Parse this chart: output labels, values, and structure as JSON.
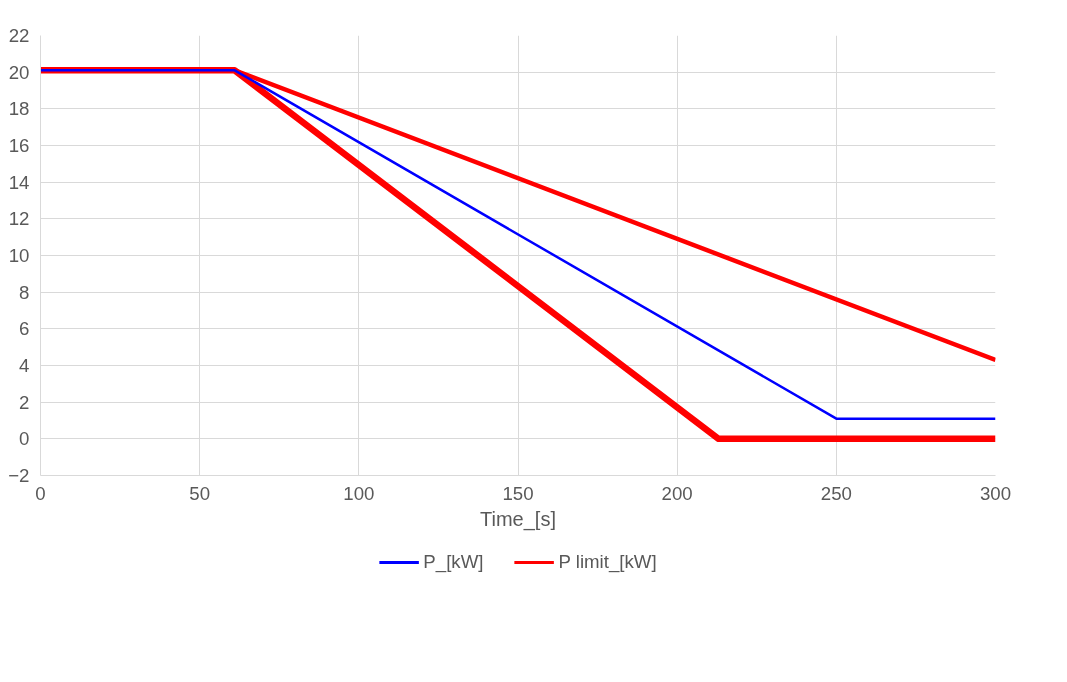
{
  "chart_data": {
    "type": "line",
    "xlabel": "Time_[s]",
    "xlim": [
      0,
      300
    ],
    "xticks": [
      0,
      50,
      100,
      150,
      200,
      250,
      300
    ],
    "ylim": [
      -2,
      22
    ],
    "yticks": [
      -2,
      0,
      2,
      4,
      6,
      8,
      10,
      12,
      14,
      16,
      18,
      20,
      22
    ],
    "grid": true,
    "legend": "bottom",
    "marker": "none",
    "line_style": "solid",
    "series": [
      {
        "name": "P_[kW]",
        "color": "#0000ff",
        "x": [
          0,
          61,
          250,
          300
        ],
        "values": [
          20.1,
          20.1,
          1.1,
          1.1
        ]
      },
      {
        "name": "P limit_[kW]",
        "color": "#ff0000",
        "x": [
          0,
          61,
          300
        ],
        "values": [
          20.1,
          20.1,
          4.3
        ]
      },
      {
        "color": "#ff0000",
        "x": [
          0,
          61,
          213,
          300
        ],
        "values": [
          20.1,
          20.1,
          0,
          0
        ]
      }
    ]
  }
}
